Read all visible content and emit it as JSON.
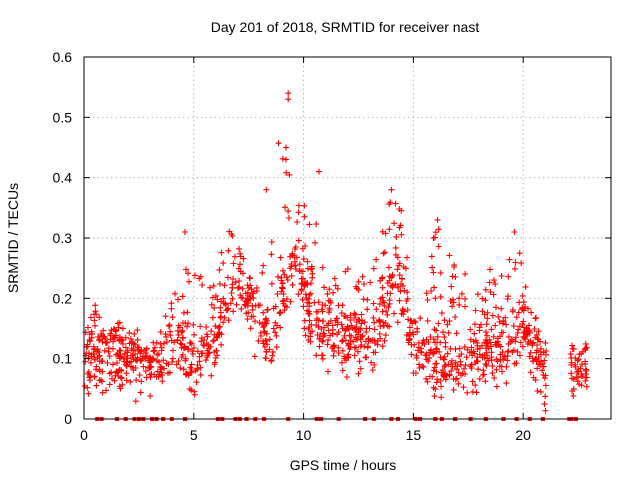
{
  "chart_data": {
    "type": "scatter",
    "title": "Day 201 of 2018, SRMTID for receiver nast",
    "xlabel": "GPS time / hours",
    "ylabel": "SRMTID / TECUs",
    "xlim": [
      0,
      24
    ],
    "ylim": [
      0,
      0.6
    ],
    "xticks": [
      0,
      5,
      10,
      15,
      20
    ],
    "yticks": [
      0,
      0.1,
      0.2,
      0.3,
      0.4,
      0.5,
      0.6
    ],
    "xtick_labels": [
      "0",
      "5",
      "10",
      "15",
      "20"
    ],
    "ytick_labels": [
      "0",
      "0.1",
      "0.2",
      "0.3",
      "0.4",
      "0.5",
      "0.6"
    ],
    "grid": true,
    "marker": "+",
    "color": "#ff0000",
    "series": [
      {
        "name": "SRMTID",
        "density_profile": {
          "hours": [
            0.0,
            0.5,
            1.0,
            1.5,
            2.0,
            2.5,
            3.0,
            3.5,
            4.0,
            4.5,
            5.0,
            5.5,
            6.0,
            6.5,
            7.0,
            7.5,
            8.0,
            8.5,
            9.0,
            9.5,
            10.0,
            10.5,
            11.0,
            11.5,
            12.0,
            12.5,
            13.0,
            13.5,
            14.0,
            14.5,
            15.0,
            15.5,
            16.0,
            16.5,
            17.0,
            17.5,
            18.0,
            18.5,
            19.0,
            19.5,
            20.0,
            20.5,
            21.0,
            22.3,
            22.9
          ],
          "typical_values": [
            0.08,
            0.11,
            0.09,
            0.1,
            0.09,
            0.09,
            0.08,
            0.1,
            0.12,
            0.13,
            0.07,
            0.11,
            0.12,
            0.21,
            0.2,
            0.19,
            0.15,
            0.13,
            0.2,
            0.24,
            0.21,
            0.15,
            0.14,
            0.14,
            0.13,
            0.13,
            0.12,
            0.14,
            0.21,
            0.2,
            0.12,
            0.1,
            0.1,
            0.1,
            0.09,
            0.09,
            0.11,
            0.12,
            0.12,
            0.13,
            0.14,
            0.12,
            0.08,
            0.08,
            0.07
          ],
          "upper_envelope": [
            0.14,
            0.19,
            0.15,
            0.16,
            0.15,
            0.13,
            0.12,
            0.15,
            0.2,
            0.24,
            0.31,
            0.27,
            0.22,
            0.33,
            0.3,
            0.24,
            0.22,
            0.38,
            0.54,
            0.4,
            0.36,
            0.41,
            0.2,
            0.25,
            0.25,
            0.23,
            0.25,
            0.3,
            0.38,
            0.35,
            0.22,
            0.2,
            0.33,
            0.28,
            0.25,
            0.27,
            0.2,
            0.25,
            0.24,
            0.31,
            0.26,
            0.2,
            0.12,
            0.12,
            0.12
          ]
        },
        "outliers": [
          {
            "x": 9.3,
            "y": 0.54
          },
          {
            "x": 9.3,
            "y": 0.53
          },
          {
            "x": 9.2,
            "y": 0.45
          },
          {
            "x": 9.2,
            "y": 0.43
          },
          {
            "x": 10.7,
            "y": 0.41
          },
          {
            "x": 14.0,
            "y": 0.38
          },
          {
            "x": 8.3,
            "y": 0.38
          },
          {
            "x": 16.1,
            "y": 0.33
          },
          {
            "x": 4.6,
            "y": 0.31
          },
          {
            "x": 19.6,
            "y": 0.31
          }
        ],
        "zero_markers_x": [
          0.6,
          0.8,
          1.5,
          1.9,
          2.3,
          2.5,
          2.7,
          3.1,
          3.3,
          3.6,
          4.0,
          4.6,
          6.1,
          6.3,
          6.9,
          7.1,
          7.4,
          7.8,
          8.2,
          9.3,
          10.6,
          10.8,
          11.6,
          12.8,
          13.2,
          14.0,
          14.3,
          15.1,
          15.3,
          16.0,
          16.3,
          16.9,
          17.6,
          18.3,
          19.1,
          19.7,
          20.3,
          20.9,
          22.1,
          22.2,
          22.4
        ]
      }
    ]
  }
}
